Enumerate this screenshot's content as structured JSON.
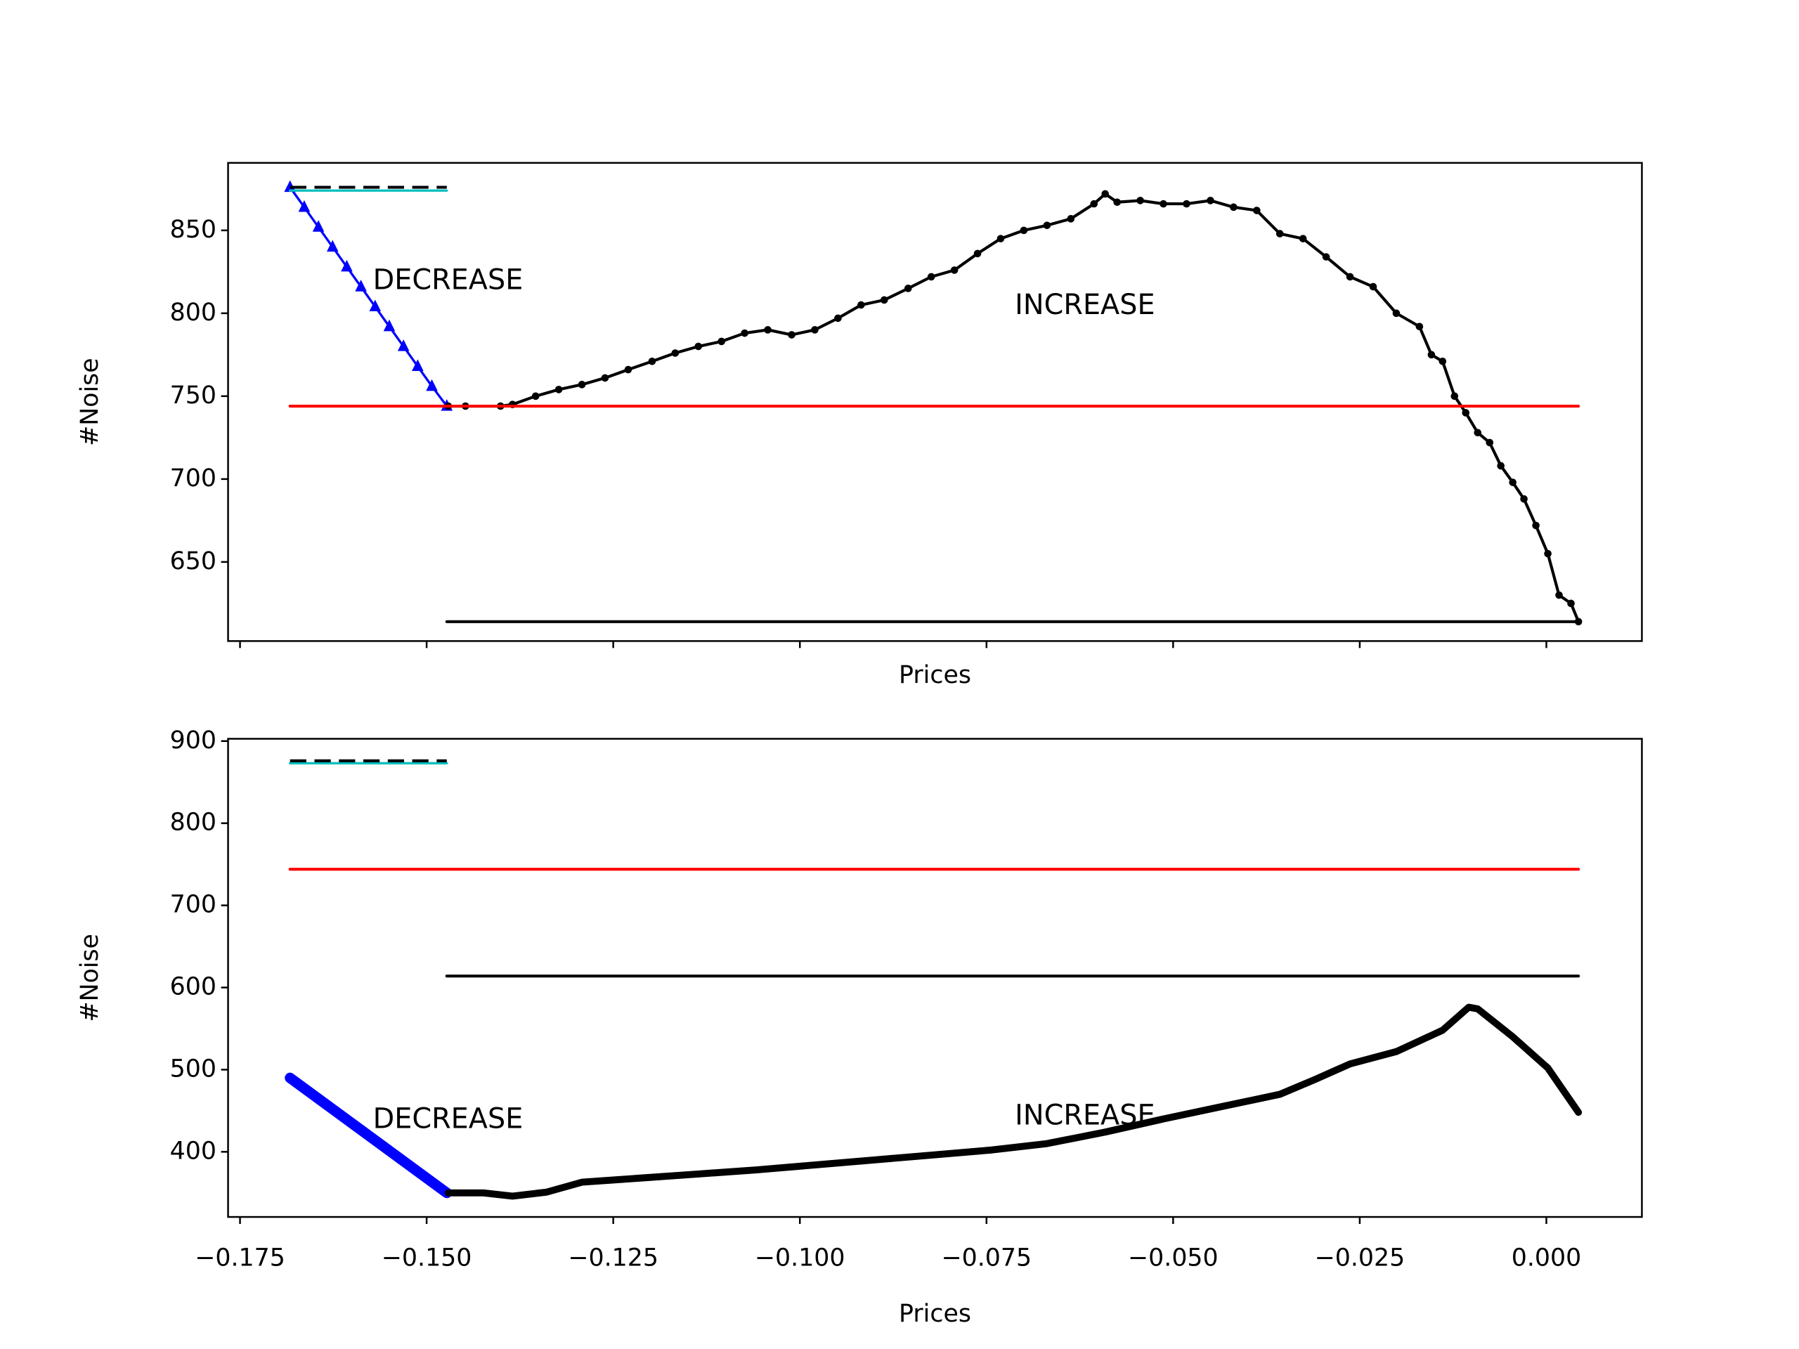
{
  "chart_data": [
    {
      "type": "line",
      "xlabel": "Prices",
      "ylabel": "#Noise",
      "xlim": [
        -0.1766,
        0.0128
      ],
      "ylim": [
        602.3,
        890.7
      ],
      "yticks": [
        650,
        700,
        750,
        800,
        850
      ],
      "annotations": [
        {
          "text": "DECREASE",
          "x": -0.1572,
          "y": 819
        },
        {
          "text": "INCREASE",
          "x": -0.0712,
          "y": 804
        }
      ],
      "series": [
        {
          "color": "#0000ff",
          "marker": "triangle",
          "linewidth": 2,
          "x": [
            -0.1683,
            -0.1664,
            -0.1645,
            -0.1626,
            -0.1607,
            -0.1588,
            -0.1569,
            -0.155,
            -0.1531,
            -0.1512,
            -0.1493,
            -0.1473
          ],
          "values": [
            876,
            864,
            852,
            840,
            828,
            816,
            804,
            792,
            780,
            768,
            756,
            744
          ]
        },
        {
          "color": "#000000",
          "marker": "circle",
          "linewidth": 2.5,
          "x": [
            -0.1471,
            -0.1448,
            -0.1401,
            -0.1385,
            -0.1354,
            -0.1323,
            -0.1292,
            -0.1261,
            -0.123,
            -0.1198,
            -0.1167,
            -0.1136,
            -0.1105,
            -0.1074,
            -0.1043,
            -0.1011,
            -0.098,
            -0.0949,
            -0.0918,
            -0.0887,
            -0.0855,
            -0.0824,
            -0.0793,
            -0.0762,
            -0.0731,
            -0.07,
            -0.0669,
            -0.0637,
            -0.0606,
            -0.0591,
            -0.0575,
            -0.0544,
            -0.0513,
            -0.0482,
            -0.045,
            -0.0419,
            -0.0388,
            -0.0357,
            -0.0326,
            -0.0295,
            -0.0263,
            -0.0232,
            -0.0201,
            -0.017,
            -0.0154,
            -0.0139,
            -0.0123,
            -0.0108,
            -0.0092,
            -0.0076,
            -0.0061,
            -0.0045,
            -0.003,
            -0.0014,
            0.0002,
            0.0017,
            0.0033,
            0.0043
          ],
          "values": [
            744,
            744,
            744,
            745,
            750,
            754,
            757,
            761,
            766,
            771,
            776,
            780,
            783,
            788,
            790,
            787,
            790,
            797,
            805,
            808,
            815,
            822,
            826,
            836,
            845,
            850,
            853,
            857,
            866,
            872,
            867,
            868,
            866,
            866,
            868,
            864,
            862,
            848,
            845,
            834,
            822,
            816,
            800,
            792,
            775,
            771,
            750,
            740,
            728,
            722,
            708,
            698,
            688,
            672,
            655,
            630,
            625,
            614
          ]
        },
        {
          "color": "#ff0000",
          "linewidth": 2.5,
          "x": [
            -0.1683,
            0.0043
          ],
          "values": [
            744,
            744
          ]
        },
        {
          "color": "#000000",
          "linewidth": 2.5,
          "x": [
            -0.1473,
            0.0043
          ],
          "values": [
            614,
            614
          ]
        },
        {
          "color": "#00bfbf",
          "linewidth": 2,
          "x": [
            -0.1683,
            -0.1473
          ],
          "values": [
            874,
            874
          ]
        },
        {
          "color": "#000000",
          "linewidth": 2.5,
          "dashed": true,
          "x": [
            -0.1683,
            -0.1473
          ],
          "values": [
            876,
            876
          ]
        }
      ]
    },
    {
      "type": "line",
      "xlabel": "Prices",
      "ylabel": "#Noise",
      "xlim": [
        -0.1766,
        0.0128
      ],
      "ylim": [
        320.7,
        902.8
      ],
      "yticks": [
        400,
        500,
        600,
        700,
        800,
        900
      ],
      "xticks": [
        {
          "value": -0.175,
          "label": "−0.175"
        },
        {
          "value": -0.15,
          "label": "−0.150"
        },
        {
          "value": -0.125,
          "label": "−0.125"
        },
        {
          "value": -0.1,
          "label": "−0.100"
        },
        {
          "value": -0.075,
          "label": "−0.075"
        },
        {
          "value": -0.05,
          "label": "−0.050"
        },
        {
          "value": -0.025,
          "label": "−0.025"
        },
        {
          "value": 0,
          "label": "0.000"
        }
      ],
      "annotations": [
        {
          "text": "DECREASE",
          "x": -0.1572,
          "y": 438
        },
        {
          "text": "INCREASE",
          "x": -0.0712,
          "y": 442
        }
      ],
      "series": [
        {
          "color": "#0000ff",
          "linewidth": 9,
          "x": [
            -0.1683,
            -0.1473
          ],
          "values": [
            490,
            350
          ]
        },
        {
          "color": "#000000",
          "linewidth": 6,
          "x": [
            -0.1471,
            -0.1424,
            -0.1385,
            -0.1339,
            -0.1292,
            -0.1214,
            -0.1136,
            -0.1058,
            -0.098,
            -0.0902,
            -0.0824,
            -0.0746,
            -0.0669,
            -0.0591,
            -0.0513,
            -0.0435,
            -0.0357,
            -0.031,
            -0.0263,
            -0.0201,
            -0.0139,
            -0.0104,
            -0.0092,
            -0.0045,
            0.0002,
            0.0043
          ],
          "values": [
            350,
            350,
            346,
            351,
            363,
            368,
            373,
            378,
            384,
            390,
            396,
            402,
            410,
            424,
            440,
            455,
            470,
            488,
            507,
            522,
            548,
            576,
            574,
            540,
            502,
            448
          ]
        },
        {
          "color": "#ff0000",
          "linewidth": 2.5,
          "x": [
            -0.1683,
            0.0043
          ],
          "values": [
            744,
            744
          ]
        },
        {
          "color": "#000000",
          "linewidth": 2.5,
          "x": [
            -0.1473,
            0.0043
          ],
          "values": [
            614,
            614
          ]
        },
        {
          "color": "#00bfbf",
          "linewidth": 2,
          "x": [
            -0.1683,
            -0.1473
          ],
          "values": [
            873,
            873
          ]
        },
        {
          "color": "#000000",
          "linewidth": 2.5,
          "dashed": true,
          "x": [
            -0.1683,
            -0.1473
          ],
          "values": [
            876,
            876
          ]
        }
      ]
    }
  ]
}
